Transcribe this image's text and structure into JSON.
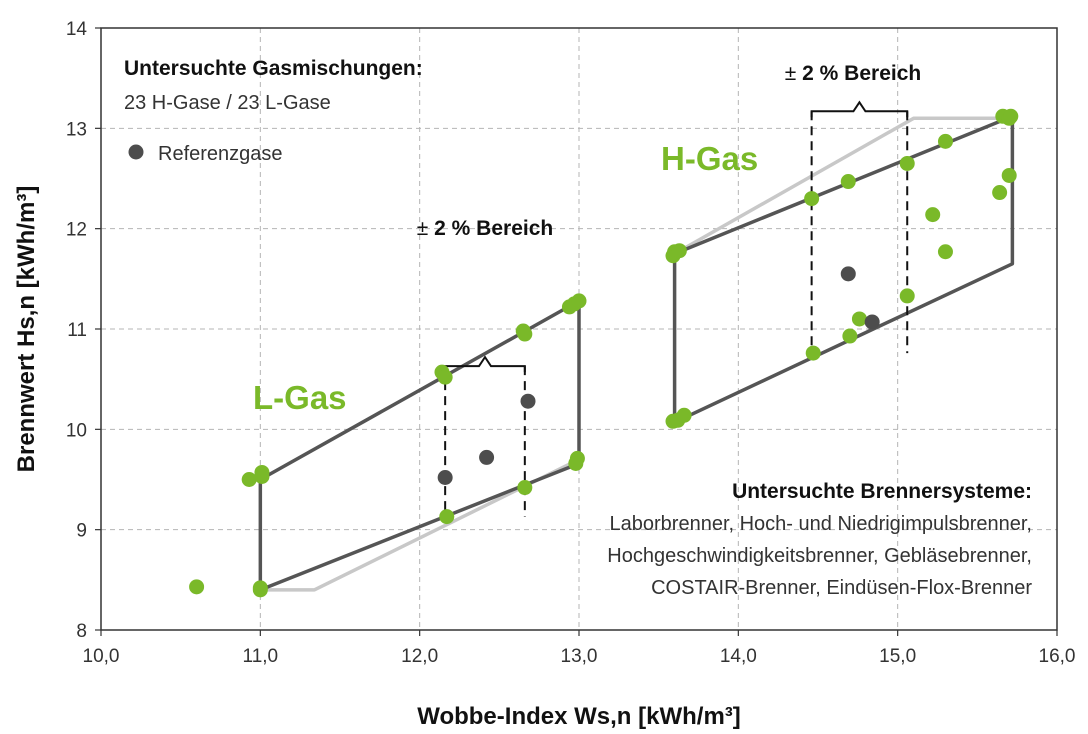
{
  "colors": {
    "green": "#7ab929",
    "dark_gray": "#555555",
    "light_gray": "#c8c8c8",
    "grid": "#b5b5b5",
    "reference": "#4d4d4d"
  },
  "legend": {
    "heading": "Untersuchte Gasmischungen:",
    "subheading": "23 H-Gase / 23 L-Gase",
    "reference_label": "Referenzgase"
  },
  "burners": {
    "heading": "Untersuchte Brennersysteme:",
    "lines": [
      "Laborbrenner, Hoch- und Niedrigimpulsbrenner,",
      "Hochgeschwindigkeitsbrenner, Gebläsebrenner,",
      "COSTAIR-Brenner, Eindüsen-Flox-Brenner"
    ]
  },
  "regions": {
    "l_gas": "L-Gas",
    "h_gas": "H-Gas"
  },
  "range_labels": {
    "l_gas": {
      "pm": "±",
      "text": "2 % Bereich"
    },
    "h_gas": {
      "pm": "±",
      "text": "2 % Bereich"
    }
  },
  "chart_data": {
    "type": "scatter",
    "xlabel": "Wobbe-Index Ws,n [kWh/m³]",
    "ylabel": "Brennwert Hs,n [kWh/m³]",
    "xlim": [
      10.0,
      16.0
    ],
    "ylim": [
      8,
      14
    ],
    "x_ticks": [
      10,
      11,
      12,
      13,
      14,
      15,
      16
    ],
    "x_tick_labels": [
      "10,0",
      "11,0",
      "12,0",
      "13,0",
      "14,0",
      "15,0",
      "16,0"
    ],
    "y_ticks": [
      8,
      9,
      10,
      11,
      12,
      13,
      14
    ],
    "y_tick_labels": [
      "8",
      "9",
      "10",
      "11",
      "12",
      "13",
      "14"
    ],
    "grid": true,
    "series": [
      {
        "name": "L-Gas",
        "color": "#7ab929",
        "points": [
          [
            10.6,
            8.43
          ],
          [
            10.93,
            9.5
          ],
          [
            11.01,
            9.57
          ],
          [
            11.01,
            9.53
          ],
          [
            11.0,
            8.42
          ],
          [
            11.0,
            8.4
          ],
          [
            12.14,
            10.57
          ],
          [
            12.16,
            10.52
          ],
          [
            12.17,
            9.13
          ],
          [
            12.65,
            10.98
          ],
          [
            12.66,
            10.95
          ],
          [
            12.66,
            9.42
          ],
          [
            12.94,
            11.22
          ],
          [
            12.97,
            11.25
          ],
          [
            13.0,
            11.28
          ],
          [
            12.99,
            9.71
          ],
          [
            12.98,
            9.66
          ]
        ]
      },
      {
        "name": "H-Gas",
        "color": "#7ab929",
        "points": [
          [
            13.59,
            11.73
          ],
          [
            13.6,
            11.77
          ],
          [
            13.63,
            11.78
          ],
          [
            13.59,
            10.08
          ],
          [
            13.62,
            10.09
          ],
          [
            13.66,
            10.14
          ],
          [
            14.46,
            12.3
          ],
          [
            14.69,
            12.47
          ],
          [
            15.06,
            12.65
          ],
          [
            15.3,
            12.87
          ],
          [
            15.66,
            13.12
          ],
          [
            15.7,
            13.1
          ],
          [
            15.71,
            13.12
          ],
          [
            15.22,
            12.14
          ],
          [
            15.64,
            12.36
          ],
          [
            15.7,
            12.53
          ],
          [
            15.3,
            11.77
          ],
          [
            15.06,
            11.33
          ],
          [
            14.76,
            11.1
          ],
          [
            14.7,
            10.93
          ],
          [
            14.47,
            10.76
          ]
        ]
      },
      {
        "name": "Referenzgase",
        "color": "#4d4d4d",
        "points": [
          [
            12.16,
            9.52
          ],
          [
            12.42,
            9.72
          ],
          [
            12.68,
            10.28
          ],
          [
            14.69,
            11.55
          ],
          [
            14.84,
            11.07
          ]
        ]
      }
    ],
    "envelopes": {
      "l_gas_dark": [
        [
          11.0,
          9.5
        ],
        [
          13.0,
          11.28
        ],
        [
          13.0,
          9.66
        ],
        [
          11.0,
          8.4
        ],
        [
          11.0,
          9.5
        ]
      ],
      "l_gas_light": [
        [
          11.0,
          8.4
        ],
        [
          11.34,
          8.4
        ],
        [
          13.0,
          9.7
        ]
      ],
      "h_gas_dark": [
        [
          13.6,
          11.75
        ],
        [
          15.72,
          13.12
        ],
        [
          15.72,
          11.65
        ],
        [
          13.6,
          10.07
        ],
        [
          13.6,
          11.75
        ]
      ],
      "h_gas_light": [
        [
          13.6,
          11.75
        ],
        [
          15.1,
          13.1
        ],
        [
          15.72,
          13.1
        ]
      ]
    },
    "ranges": [
      {
        "region": "L-Gas",
        "x": [
          12.16,
          12.66
        ],
        "top": 10.63,
        "bottom": 9.13
      },
      {
        "region": "H-Gas",
        "x": [
          14.46,
          15.06
        ],
        "top": 13.17,
        "bottom": 10.76
      }
    ]
  }
}
